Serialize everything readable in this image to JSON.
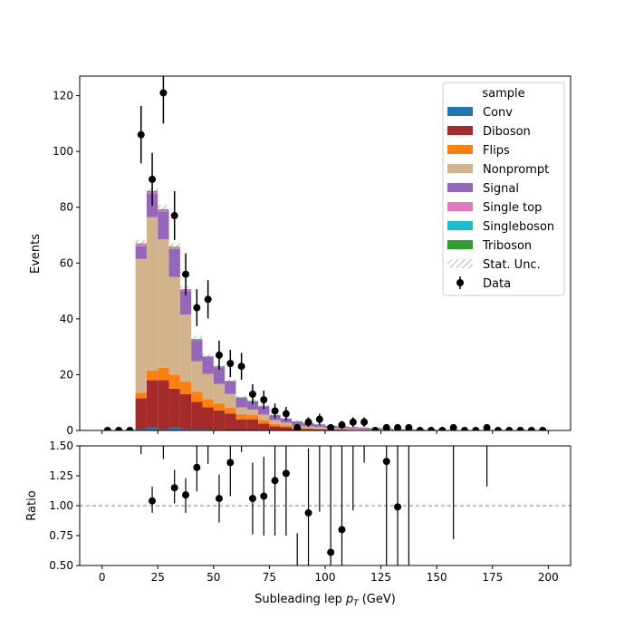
{
  "chart_data": {
    "type": "bar",
    "xlabel": "Subleading lep",
    "xlabel_sub": "T",
    "xlabel_unit": "(GeV)",
    "xlim": [
      -10,
      210
    ],
    "x_ticks": [
      0,
      25,
      50,
      75,
      100,
      125,
      150,
      175,
      200
    ],
    "bin_edges": [
      0,
      5,
      10,
      15,
      20,
      25,
      30,
      35,
      40,
      45,
      50,
      55,
      60,
      65,
      70,
      75,
      80,
      85,
      90,
      95,
      100,
      105,
      110,
      115,
      120,
      125,
      130,
      135,
      140,
      145,
      150,
      155,
      160,
      165,
      170,
      175,
      180,
      185,
      190,
      195,
      200
    ],
    "main": {
      "ylabel": "Events",
      "ylim": [
        0,
        127
      ],
      "y_ticks": [
        0,
        20,
        40,
        60,
        80,
        100,
        120
      ],
      "series": [
        {
          "name": "Conv",
          "color": "#1f77b4",
          "values": [
            0,
            0,
            0,
            0.5,
            1,
            0.5,
            1,
            0.5,
            0.3,
            0.3,
            0.2,
            0.1,
            0,
            0,
            0,
            0,
            0,
            0,
            0,
            0,
            0,
            0,
            0,
            0,
            0,
            0,
            0,
            0,
            0,
            0,
            0,
            0,
            0,
            0,
            0,
            0,
            0,
            0,
            0,
            0
          ]
        },
        {
          "name": "Diboson",
          "color": "#a52a2a",
          "values": [
            0,
            0,
            0,
            11,
            17,
            17.5,
            14,
            12.5,
            10,
            8,
            7,
            6,
            4,
            4,
            2.5,
            1.5,
            1.2,
            0.6,
            0.5,
            0.4,
            0.3,
            0.3,
            0.2,
            0.2,
            0.1,
            0.1,
            0.1,
            0,
            0,
            0,
            0,
            0,
            0,
            0,
            0,
            0,
            0,
            0,
            0,
            0
          ]
        },
        {
          "name": "Flips",
          "color": "#ff7f0e",
          "values": [
            0,
            0,
            0,
            2,
            3.5,
            4.5,
            5,
            4.5,
            3.5,
            3,
            2.5,
            2,
            1.8,
            1.5,
            1.2,
            0.8,
            0.6,
            0.4,
            0.4,
            0.3,
            0.2,
            0.2,
            0.1,
            0.1,
            0.1,
            0.1,
            0,
            0,
            0,
            0,
            0,
            0,
            0,
            0,
            0,
            0,
            0,
            0,
            0,
            0
          ]
        },
        {
          "name": "Nonprompt",
          "color": "#d2b48c",
          "values": [
            0,
            0,
            0,
            48,
            55,
            46,
            35,
            24,
            11,
            9,
            7,
            5,
            2.5,
            2,
            2,
            1.4,
            1,
            0.8,
            0.6,
            0.5,
            0.4,
            0.3,
            0.3,
            0.2,
            0.2,
            0.2,
            0.1,
            0.1,
            0.1,
            0,
            0,
            0,
            0,
            0,
            0,
            0,
            0,
            0,
            0,
            0
          ]
        },
        {
          "name": "Signal",
          "color": "#9467bd",
          "values": [
            0,
            0,
            0,
            4.5,
            8.5,
            10,
            10,
            8.5,
            7.5,
            6,
            6,
            4.5,
            3.5,
            3,
            3,
            1.8,
            1.5,
            1.5,
            1.1,
            1,
            0.8,
            0.7,
            0.6,
            0.5,
            0.4,
            0.4,
            0.3,
            0.3,
            0.2,
            0.2,
            0.2,
            0.1,
            0.1,
            0.1,
            0.1,
            0,
            0,
            0,
            0,
            0
          ]
        },
        {
          "name": "Single top",
          "color": "#e377c2",
          "values": [
            0,
            0,
            0,
            1,
            0.5,
            0.5,
            0.5,
            0.4,
            0.3,
            0.2,
            0.2,
            0.1,
            0,
            0,
            0,
            0,
            0,
            0,
            0,
            0,
            0,
            0,
            0,
            0,
            0,
            0,
            0,
            0,
            0,
            0,
            0,
            0,
            0,
            0,
            0,
            0,
            0,
            0,
            0,
            0
          ]
        },
        {
          "name": "Singleboson",
          "color": "#17becf",
          "values": [
            0,
            0,
            0,
            0,
            0,
            0,
            0,
            0,
            0,
            0,
            0,
            0,
            0,
            0,
            0,
            0,
            0,
            0,
            0,
            0,
            0,
            0,
            0,
            0,
            0,
            0,
            0,
            0,
            0,
            0,
            0,
            0,
            0,
            0,
            0,
            0,
            0,
            0,
            0,
            0
          ]
        },
        {
          "name": "Triboson",
          "color": "#2ca02c",
          "values": [
            0,
            0,
            0,
            0.1,
            0.3,
            0.3,
            0.3,
            0.2,
            0.2,
            0.1,
            0.1,
            0.1,
            0.1,
            0.1,
            0,
            0,
            0,
            0,
            0,
            0,
            0,
            0,
            0,
            0,
            0,
            0,
            0,
            0,
            0,
            0,
            0,
            0,
            0,
            0,
            0,
            0,
            0,
            0,
            0,
            0
          ]
        }
      ],
      "stat_unc": [
        0,
        0,
        0,
        1.2,
        1.6,
        1.5,
        1.4,
        1.2,
        1,
        0.9,
        0.9,
        0.8,
        0.6,
        0.6,
        0.5,
        0.4,
        0.3,
        0.3,
        0.3,
        0.3,
        0.2,
        0.2,
        0.2,
        0.2,
        0.2,
        0.1,
        0.1,
        0.1,
        0.1,
        0,
        0,
        0,
        0,
        0,
        0,
        0,
        0,
        0,
        0,
        0
      ],
      "data": {
        "x": [
          2.5,
          7.5,
          12.5,
          17.5,
          22.5,
          27.5,
          32.5,
          37.5,
          42.5,
          47.5,
          52.5,
          57.5,
          62.5,
          67.5,
          72.5,
          77.5,
          82.5,
          87.5,
          92.5,
          97.5,
          102.5,
          107.5,
          112.5,
          117.5,
          122.5,
          127.5,
          132.5,
          137.5,
          142.5,
          147.5,
          152.5,
          157.5,
          162.5,
          167.5,
          172.5,
          177.5,
          182.5,
          187.5,
          192.5,
          197.5
        ],
        "y": [
          0,
          0,
          0,
          106,
          90,
          121,
          77,
          56,
          44,
          47,
          27,
          24,
          23,
          13,
          11,
          7,
          6,
          1,
          3,
          4,
          1,
          2,
          3,
          3,
          0,
          1,
          1,
          1,
          0,
          0,
          0,
          1,
          0,
          0,
          1,
          0,
          0,
          0,
          0,
          0
        ]
      }
    },
    "ratio": {
      "ylabel": "Ratio",
      "ylim": [
        0.5,
        1.5
      ],
      "y_ticks": [
        0.5,
        0.75,
        1.0,
        1.25,
        1.5
      ],
      "y_tick_labels": [
        "0.50",
        "0.75",
        "1.00",
        "1.25",
        "1.50"
      ],
      "reference": 1.0,
      "points": [
        {
          "x": 22.5,
          "y": 1.04,
          "lo": 0.94,
          "hi": 1.16
        },
        {
          "x": 32.5,
          "y": 1.15,
          "lo": 1.02,
          "hi": 1.3
        },
        {
          "x": 37.5,
          "y": 1.09,
          "lo": 0.94,
          "hi": 1.23
        },
        {
          "x": 42.5,
          "y": 1.32,
          "lo": 1.12,
          "hi": 1.53
        },
        {
          "x": 52.5,
          "y": 1.06,
          "lo": 0.86,
          "hi": 1.26
        },
        {
          "x": 57.5,
          "y": 1.36,
          "lo": 1.08,
          "hi": 1.64
        },
        {
          "x": 67.5,
          "y": 1.06,
          "lo": 0.76,
          "hi": 1.36
        },
        {
          "x": 72.5,
          "y": 1.08,
          "lo": 0.75,
          "hi": 1.41
        },
        {
          "x": 77.5,
          "y": 1.21,
          "lo": 0.75,
          "hi": 1.66
        },
        {
          "x": 82.5,
          "y": 1.27,
          "lo": 0.75,
          "hi": 1.79
        },
        {
          "x": 92.5,
          "y": 0.94,
          "lo": 0.4,
          "hi": 1.48
        },
        {
          "x": 102.5,
          "y": 0.61,
          "lo": 0.05,
          "hi": 1.5
        },
        {
          "x": 107.5,
          "y": 0.8,
          "lo": 0.2,
          "hi": 1.6
        },
        {
          "x": 127.5,
          "y": 1.37,
          "lo": 0.2,
          "hi": 2.6
        },
        {
          "x": 132.5,
          "y": 0.99,
          "lo": 0.1,
          "hi": 2.2
        }
      ],
      "bars_only": [
        {
          "x": 17.5,
          "lo": 1.43,
          "hi": 1.6
        },
        {
          "x": 27.5,
          "lo": 1.39,
          "hi": 1.6
        },
        {
          "x": 47.5,
          "lo": 1.35,
          "hi": 1.6
        },
        {
          "x": 62.5,
          "lo": 1.45,
          "hi": 1.6
        },
        {
          "x": 87.5,
          "lo": 0.45,
          "hi": 0.77
        },
        {
          "x": 97.5,
          "lo": 0.95,
          "hi": 1.6
        },
        {
          "x": 112.5,
          "lo": 0.96,
          "hi": 1.6
        },
        {
          "x": 117.5,
          "lo": 1.36,
          "hi": 1.6
        },
        {
          "x": 137.5,
          "lo": 0.4,
          "hi": 1.6
        },
        {
          "x": 157.5,
          "lo": 0.72,
          "hi": 1.6
        },
        {
          "x": 172.5,
          "lo": 1.16,
          "hi": 1.6
        }
      ]
    },
    "legend": {
      "title": "sample",
      "placement": "top-right",
      "entries": [
        {
          "label": "Conv",
          "kind": "patch",
          "color": "#1f77b4"
        },
        {
          "label": "Diboson",
          "kind": "patch",
          "color": "#a52a2a"
        },
        {
          "label": "Flips",
          "kind": "patch",
          "color": "#ff7f0e"
        },
        {
          "label": "Nonprompt",
          "kind": "patch",
          "color": "#d2b48c"
        },
        {
          "label": "Signal",
          "kind": "patch",
          "color": "#9467bd"
        },
        {
          "label": "Single top",
          "kind": "patch",
          "color": "#e377c2"
        },
        {
          "label": "Singleboson",
          "kind": "patch",
          "color": "#17becf"
        },
        {
          "label": "Triboson",
          "kind": "patch",
          "color": "#2ca02c"
        },
        {
          "label": "Stat. Unc.",
          "kind": "hatch",
          "color": "#888888"
        },
        {
          "label": "Data",
          "kind": "errorbar",
          "color": "#000000"
        }
      ]
    },
    "grid": false
  }
}
